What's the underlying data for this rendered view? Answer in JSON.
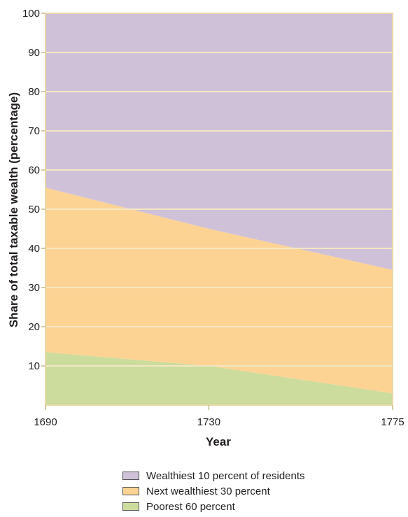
{
  "chart_data": {
    "type": "area",
    "stacked": true,
    "x": [
      1690,
      1730,
      1775
    ],
    "x_ticks": [
      1690,
      1730,
      1775
    ],
    "xlim": [
      1690,
      1775
    ],
    "y_ticks": [
      10,
      20,
      30,
      40,
      50,
      60,
      70,
      80,
      90,
      100
    ],
    "ylim": [
      0,
      100
    ],
    "xlabel": "Year",
    "ylabel": "Share of total taxable wealth (percentage)",
    "grid": true,
    "legend_position": "bottom",
    "series": [
      {
        "name": "Poorest 60 percent",
        "values": [
          13.5,
          10,
          3
        ],
        "color": "#cbdc9c"
      },
      {
        "name": "Next wealthiest 30 percent",
        "values": [
          42,
          35,
          31.5
        ],
        "color": "#fdd393"
      },
      {
        "name": "Wealthiest 10 percent of residents",
        "values": [
          44.5,
          55,
          65.5
        ],
        "color": "#cfc1d8"
      }
    ]
  },
  "legend": [
    {
      "label": "Wealthiest 10 percent of residents",
      "color": "#cfc1d8"
    },
    {
      "label": "Next wealthiest 30 percent",
      "color": "#fdd393"
    },
    {
      "label": "Poorest 60 percent",
      "color": "#cbdc9c"
    }
  ]
}
